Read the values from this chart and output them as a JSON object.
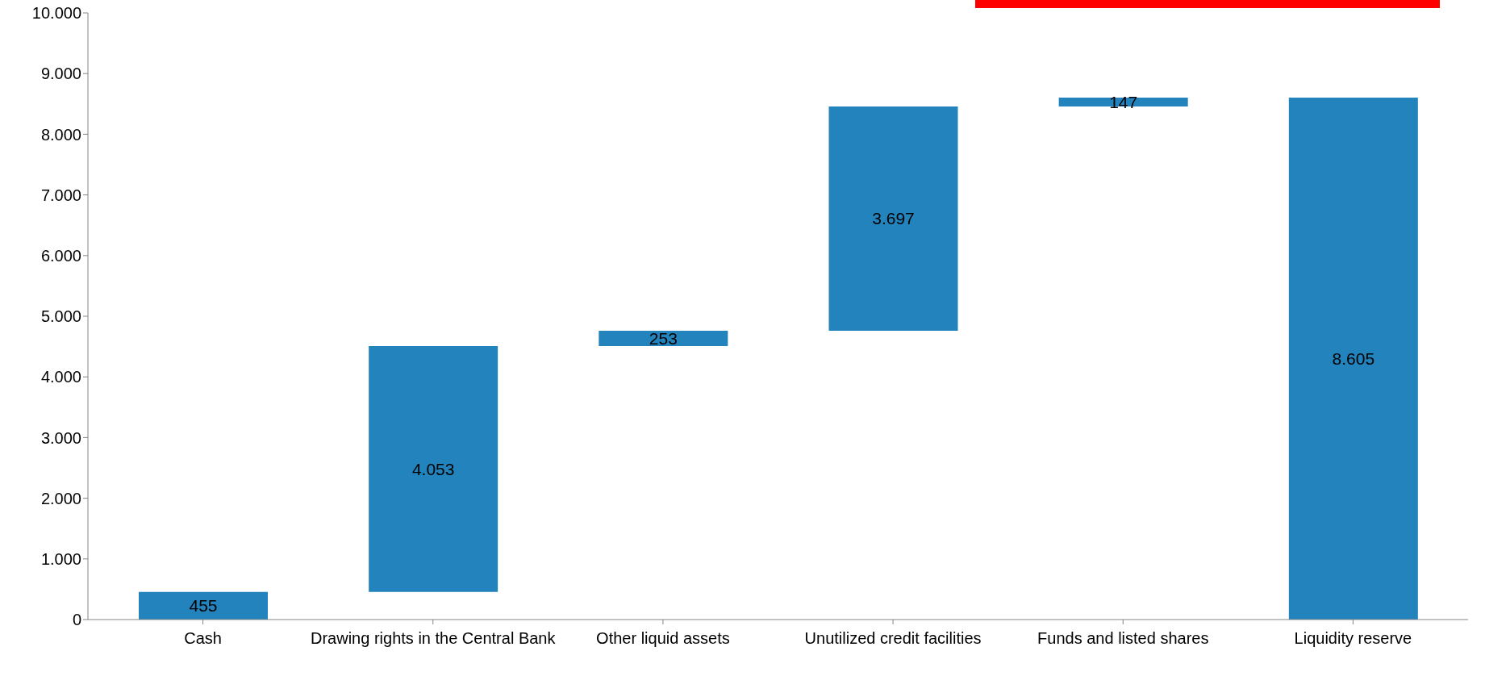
{
  "chart_data": {
    "type": "bar",
    "categories": [
      "Cash",
      "Drawing rights in the Central Bank",
      "Other liquid assets",
      "Unutilized credit facilities",
      "Funds and listed shares",
      "Liquidity reserve"
    ],
    "values": [
      455,
      4053,
      253,
      3697,
      147,
      8605
    ],
    "base": [
      0,
      455,
      4508,
      4761,
      8458,
      0
    ],
    "color": "#2383bc",
    "value_labels": [
      "455",
      "4.053",
      "253",
      "3.697",
      "147",
      "8.605"
    ],
    "ylim": [
      0,
      10000
    ],
    "yticks": [
      {
        "value": 0,
        "label": "0"
      },
      {
        "value": 1000,
        "label": "1.000"
      },
      {
        "value": 2000,
        "label": "2.000"
      },
      {
        "value": 3000,
        "label": "3.000"
      },
      {
        "value": 4000,
        "label": "4.000"
      },
      {
        "value": 5000,
        "label": "5.000"
      },
      {
        "value": 6000,
        "label": "6.000"
      },
      {
        "value": 7000,
        "label": "7.000"
      },
      {
        "value": 8000,
        "label": "8.000"
      },
      {
        "value": 9000,
        "label": "9.000"
      },
      {
        "value": 10000,
        "label": "10.000"
      }
    ],
    "grid": false,
    "legend": false
  }
}
